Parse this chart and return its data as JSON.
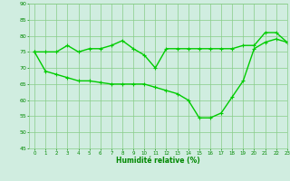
{
  "line1_x": [
    0,
    1,
    2,
    3,
    4,
    5,
    6,
    7,
    8,
    9,
    10,
    11,
    12,
    13,
    14,
    15,
    16,
    17,
    18,
    19,
    20,
    21,
    22,
    23
  ],
  "line1_y": [
    75,
    69,
    68,
    67,
    66,
    66,
    65.5,
    65,
    65,
    65,
    65,
    64,
    63,
    62,
    60,
    54.5,
    54.5,
    56,
    61,
    66,
    76,
    78,
    79,
    78
  ],
  "line2_x": [
    0,
    1,
    2,
    3,
    4,
    5,
    6,
    7,
    8,
    9,
    10,
    11,
    12,
    13,
    14,
    15,
    16,
    17,
    18,
    19,
    20,
    21,
    22,
    23
  ],
  "line2_y": [
    75,
    75,
    75,
    77,
    75,
    76,
    76,
    77,
    78.5,
    76,
    74,
    70,
    76,
    76,
    76,
    76,
    76,
    76,
    76,
    77,
    77,
    81,
    81,
    78
  ],
  "line_color": "#00cc00",
  "bg_color": "#d0ede0",
  "grid_color": "#88cc88",
  "xlabel": "Humidité relative (%)",
  "xlabel_color": "#008800",
  "tick_color": "#008800",
  "ylim": [
    45,
    90
  ],
  "xlim": [
    -0.5,
    23
  ],
  "yticks": [
    45,
    50,
    55,
    60,
    65,
    70,
    75,
    80,
    85,
    90
  ],
  "xticks": [
    0,
    1,
    2,
    3,
    4,
    5,
    6,
    7,
    8,
    9,
    10,
    11,
    12,
    13,
    14,
    15,
    16,
    17,
    18,
    19,
    20,
    21,
    22,
    23
  ],
  "marker": "+",
  "markersize": 3,
  "linewidth": 1.0
}
